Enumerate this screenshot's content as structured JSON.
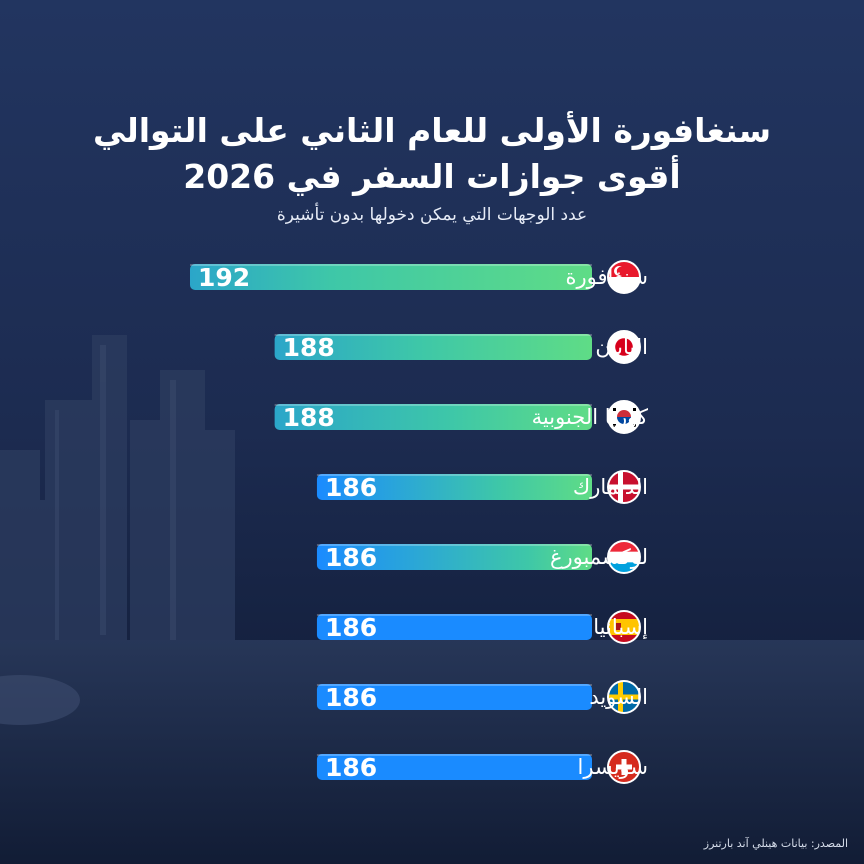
{
  "header": {
    "title_line1": "سنغافورة الأولى للعام الثاني على التوالي",
    "title_line2": "أقوى جوازات السفر في 2026",
    "subtitle": "عدد الوجهات التي يمكن دخولها بدون تأشيرة"
  },
  "footer": {
    "source": "المصدر: بيانات هينلي آند بارتنرز"
  },
  "chart_data": {
    "type": "bar",
    "orientation": "horizontal",
    "title": "أقوى جوازات السفر في 2026",
    "categories": [
      "سنغافورة",
      "اليابان",
      "كوريا الجنوبية",
      "الدنمارك",
      "لوكسمبورغ",
      "إسبانيا",
      "السويد",
      "سويسرا"
    ],
    "values": [
      192,
      188,
      188,
      186,
      186,
      186,
      186,
      186
    ],
    "flags": [
      "singapore-flag-icon",
      "japan-flag-icon",
      "south-korea-flag-icon",
      "denmark-flag-icon",
      "luxembourg-flag-icon",
      "spain-flag-icon",
      "sweden-flag-icon",
      "switzerland-flag-icon"
    ],
    "xlim": [
      173,
      192
    ],
    "colors": {
      "green": "#5fdc86",
      "teal": "#2ba6c9",
      "blue": "#1a8bff"
    }
  }
}
